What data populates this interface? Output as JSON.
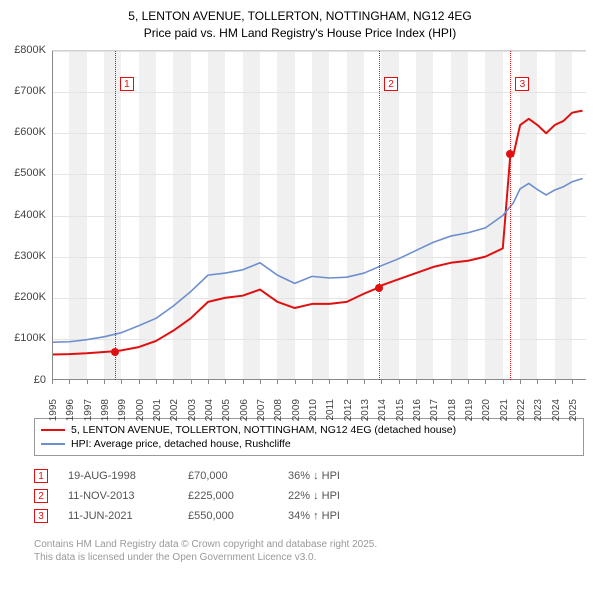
{
  "title": {
    "line1": "5, LENTON AVENUE, TOLLERTON, NOTTINGHAM, NG12 4EG",
    "line2": "Price paid vs. HM Land Registry's House Price Index (HPI)"
  },
  "chart": {
    "type": "line",
    "background_color": "#ffffff",
    "band_color": "#f0f0f0",
    "grid_color": "#e4e4e4",
    "axis_color": "#888888",
    "x_years": [
      1995,
      1996,
      1997,
      1998,
      1999,
      2000,
      2001,
      2002,
      2003,
      2004,
      2005,
      2006,
      2007,
      2008,
      2009,
      2010,
      2011,
      2012,
      2013,
      2014,
      2015,
      2016,
      2017,
      2018,
      2019,
      2020,
      2021,
      2022,
      2023,
      2024,
      2025
    ],
    "xlim": [
      1995,
      2025.8
    ],
    "ylim": [
      0,
      800
    ],
    "ytick_step": 100,
    "y_tick_labels": [
      "£0",
      "£100K",
      "£200K",
      "£300K",
      "£400K",
      "£500K",
      "£600K",
      "£700K",
      "£800K"
    ],
    "label_fontsize": 11,
    "series": [
      {
        "name": "price_paid",
        "color": "#e01010",
        "line_width": 2,
        "points": [
          [
            1995,
            62
          ],
          [
            1996,
            63
          ],
          [
            1997,
            65
          ],
          [
            1998.6,
            70
          ],
          [
            1999,
            72
          ],
          [
            2000,
            80
          ],
          [
            2001,
            95
          ],
          [
            2002,
            120
          ],
          [
            2003,
            150
          ],
          [
            2004,
            190
          ],
          [
            2005,
            200
          ],
          [
            2006,
            205
          ],
          [
            2007,
            220
          ],
          [
            2008,
            190
          ],
          [
            2009,
            175
          ],
          [
            2010,
            185
          ],
          [
            2011,
            185
          ],
          [
            2012,
            190
          ],
          [
            2013,
            210
          ],
          [
            2013.86,
            225
          ],
          [
            2014,
            230
          ],
          [
            2015,
            245
          ],
          [
            2016,
            260
          ],
          [
            2017,
            275
          ],
          [
            2018,
            285
          ],
          [
            2019,
            290
          ],
          [
            2020,
            300
          ],
          [
            2021,
            320
          ],
          [
            2021.44,
            550
          ],
          [
            2021.6,
            545
          ],
          [
            2022,
            620
          ],
          [
            2022.5,
            635
          ],
          [
            2023,
            620
          ],
          [
            2023.5,
            600
          ],
          [
            2024,
            620
          ],
          [
            2024.5,
            630
          ],
          [
            2025,
            650
          ],
          [
            2025.6,
            655
          ]
        ]
      },
      {
        "name": "hpi",
        "color": "#6d8fd0",
        "line_width": 1.6,
        "points": [
          [
            1995,
            92
          ],
          [
            1996,
            93
          ],
          [
            1997,
            98
          ],
          [
            1998,
            105
          ],
          [
            1999,
            115
          ],
          [
            2000,
            132
          ],
          [
            2001,
            150
          ],
          [
            2002,
            180
          ],
          [
            2003,
            215
          ],
          [
            2004,
            255
          ],
          [
            2005,
            260
          ],
          [
            2006,
            268
          ],
          [
            2007,
            285
          ],
          [
            2008,
            255
          ],
          [
            2009,
            235
          ],
          [
            2010,
            252
          ],
          [
            2011,
            248
          ],
          [
            2012,
            250
          ],
          [
            2013,
            260
          ],
          [
            2014,
            278
          ],
          [
            2015,
            295
          ],
          [
            2016,
            315
          ],
          [
            2017,
            335
          ],
          [
            2018,
            350
          ],
          [
            2019,
            358
          ],
          [
            2020,
            370
          ],
          [
            2021,
            400
          ],
          [
            2021.6,
            430
          ],
          [
            2022,
            465
          ],
          [
            2022.5,
            478
          ],
          [
            2023,
            463
          ],
          [
            2023.5,
            450
          ],
          [
            2024,
            462
          ],
          [
            2024.5,
            470
          ],
          [
            2025,
            482
          ],
          [
            2025.6,
            490
          ]
        ]
      }
    ],
    "markers": [
      {
        "n": "1",
        "year": 1998.63,
        "value": 70,
        "color": "#e01010",
        "box_top": 26
      },
      {
        "n": "2",
        "year": 2013.86,
        "value": 225,
        "color": "#e01010",
        "box_top": 26
      },
      {
        "n": "3",
        "year": 2021.44,
        "value": 550,
        "color": "#e01010",
        "box_top": 26
      }
    ]
  },
  "legend": {
    "items": [
      {
        "color": "#e01010",
        "label": "5, LENTON AVENUE, TOLLERTON, NOTTINGHAM, NG12 4EG (detached house)"
      },
      {
        "color": "#6d8fd0",
        "label": "HPI: Average price, detached house, Rushcliffe"
      }
    ]
  },
  "sales": [
    {
      "n": "1",
      "date": "19-AUG-1998",
      "price": "£70,000",
      "diff": "36% ↓ HPI",
      "color": "#e01010"
    },
    {
      "n": "2",
      "date": "11-NOV-2013",
      "price": "£225,000",
      "diff": "22% ↓ HPI",
      "color": "#e01010"
    },
    {
      "n": "3",
      "date": "11-JUN-2021",
      "price": "£550,000",
      "diff": "34% ↑ HPI",
      "color": "#e01010"
    }
  ],
  "attribution": {
    "line1": "Contains HM Land Registry data © Crown copyright and database right 2025.",
    "line2": "This data is licensed under the Open Government Licence v3.0."
  }
}
